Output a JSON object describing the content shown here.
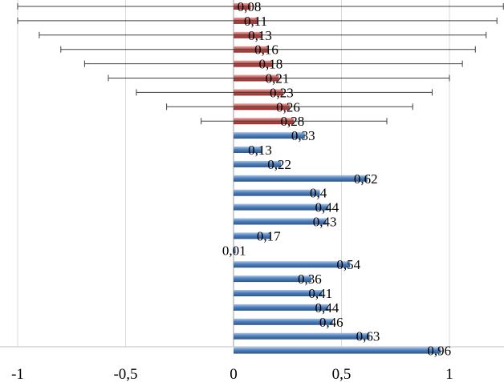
{
  "chart_data": {
    "type": "bar",
    "orientation": "horizontal",
    "title": "",
    "xlabel": "",
    "ylabel": "",
    "xlim": [
      -1.0,
      1.25
    ],
    "xticks": [
      -1,
      -0.5,
      0,
      0.5,
      1
    ],
    "xtick_labels": [
      "-1",
      "-0,5",
      "0",
      "0,5",
      "1"
    ],
    "grid": true,
    "legend": "none",
    "error_series": {
      "color": "#c0504d",
      "values": [
        0.08,
        0.11,
        0.13,
        0.16,
        0.18,
        0.21,
        0.23,
        0.26,
        0.28
      ],
      "labels": [
        "0,08",
        "0,11",
        "0,13",
        "0,16",
        "0,18",
        "0,21",
        "0,23",
        "0,26",
        "0,28"
      ],
      "err_low": [
        -1.0,
        -1.0,
        -0.9,
        -0.8,
        -0.69,
        -0.58,
        -0.45,
        -0.31,
        -0.15
      ],
      "err_high": [
        1.25,
        1.22,
        1.17,
        1.12,
        1.06,
        1.0,
        0.92,
        0.83,
        0.71
      ]
    },
    "blue_series": {
      "color": "#4f81bd",
      "values": [
        0.33,
        0.13,
        0.22,
        0.62,
        0.4,
        0.44,
        0.43,
        0.17,
        0.01,
        0.54,
        0.36,
        0.41,
        0.44,
        0.46,
        0.63,
        0.96
      ],
      "labels": [
        "0,33",
        "0,13",
        "0,22",
        "0,62",
        "0,4",
        "0,44",
        "0,43",
        "0,17",
        "0,01",
        "0,54",
        "0,36",
        "0,41",
        "0,44",
        "0,46",
        "0,63",
        "0,96"
      ]
    }
  }
}
